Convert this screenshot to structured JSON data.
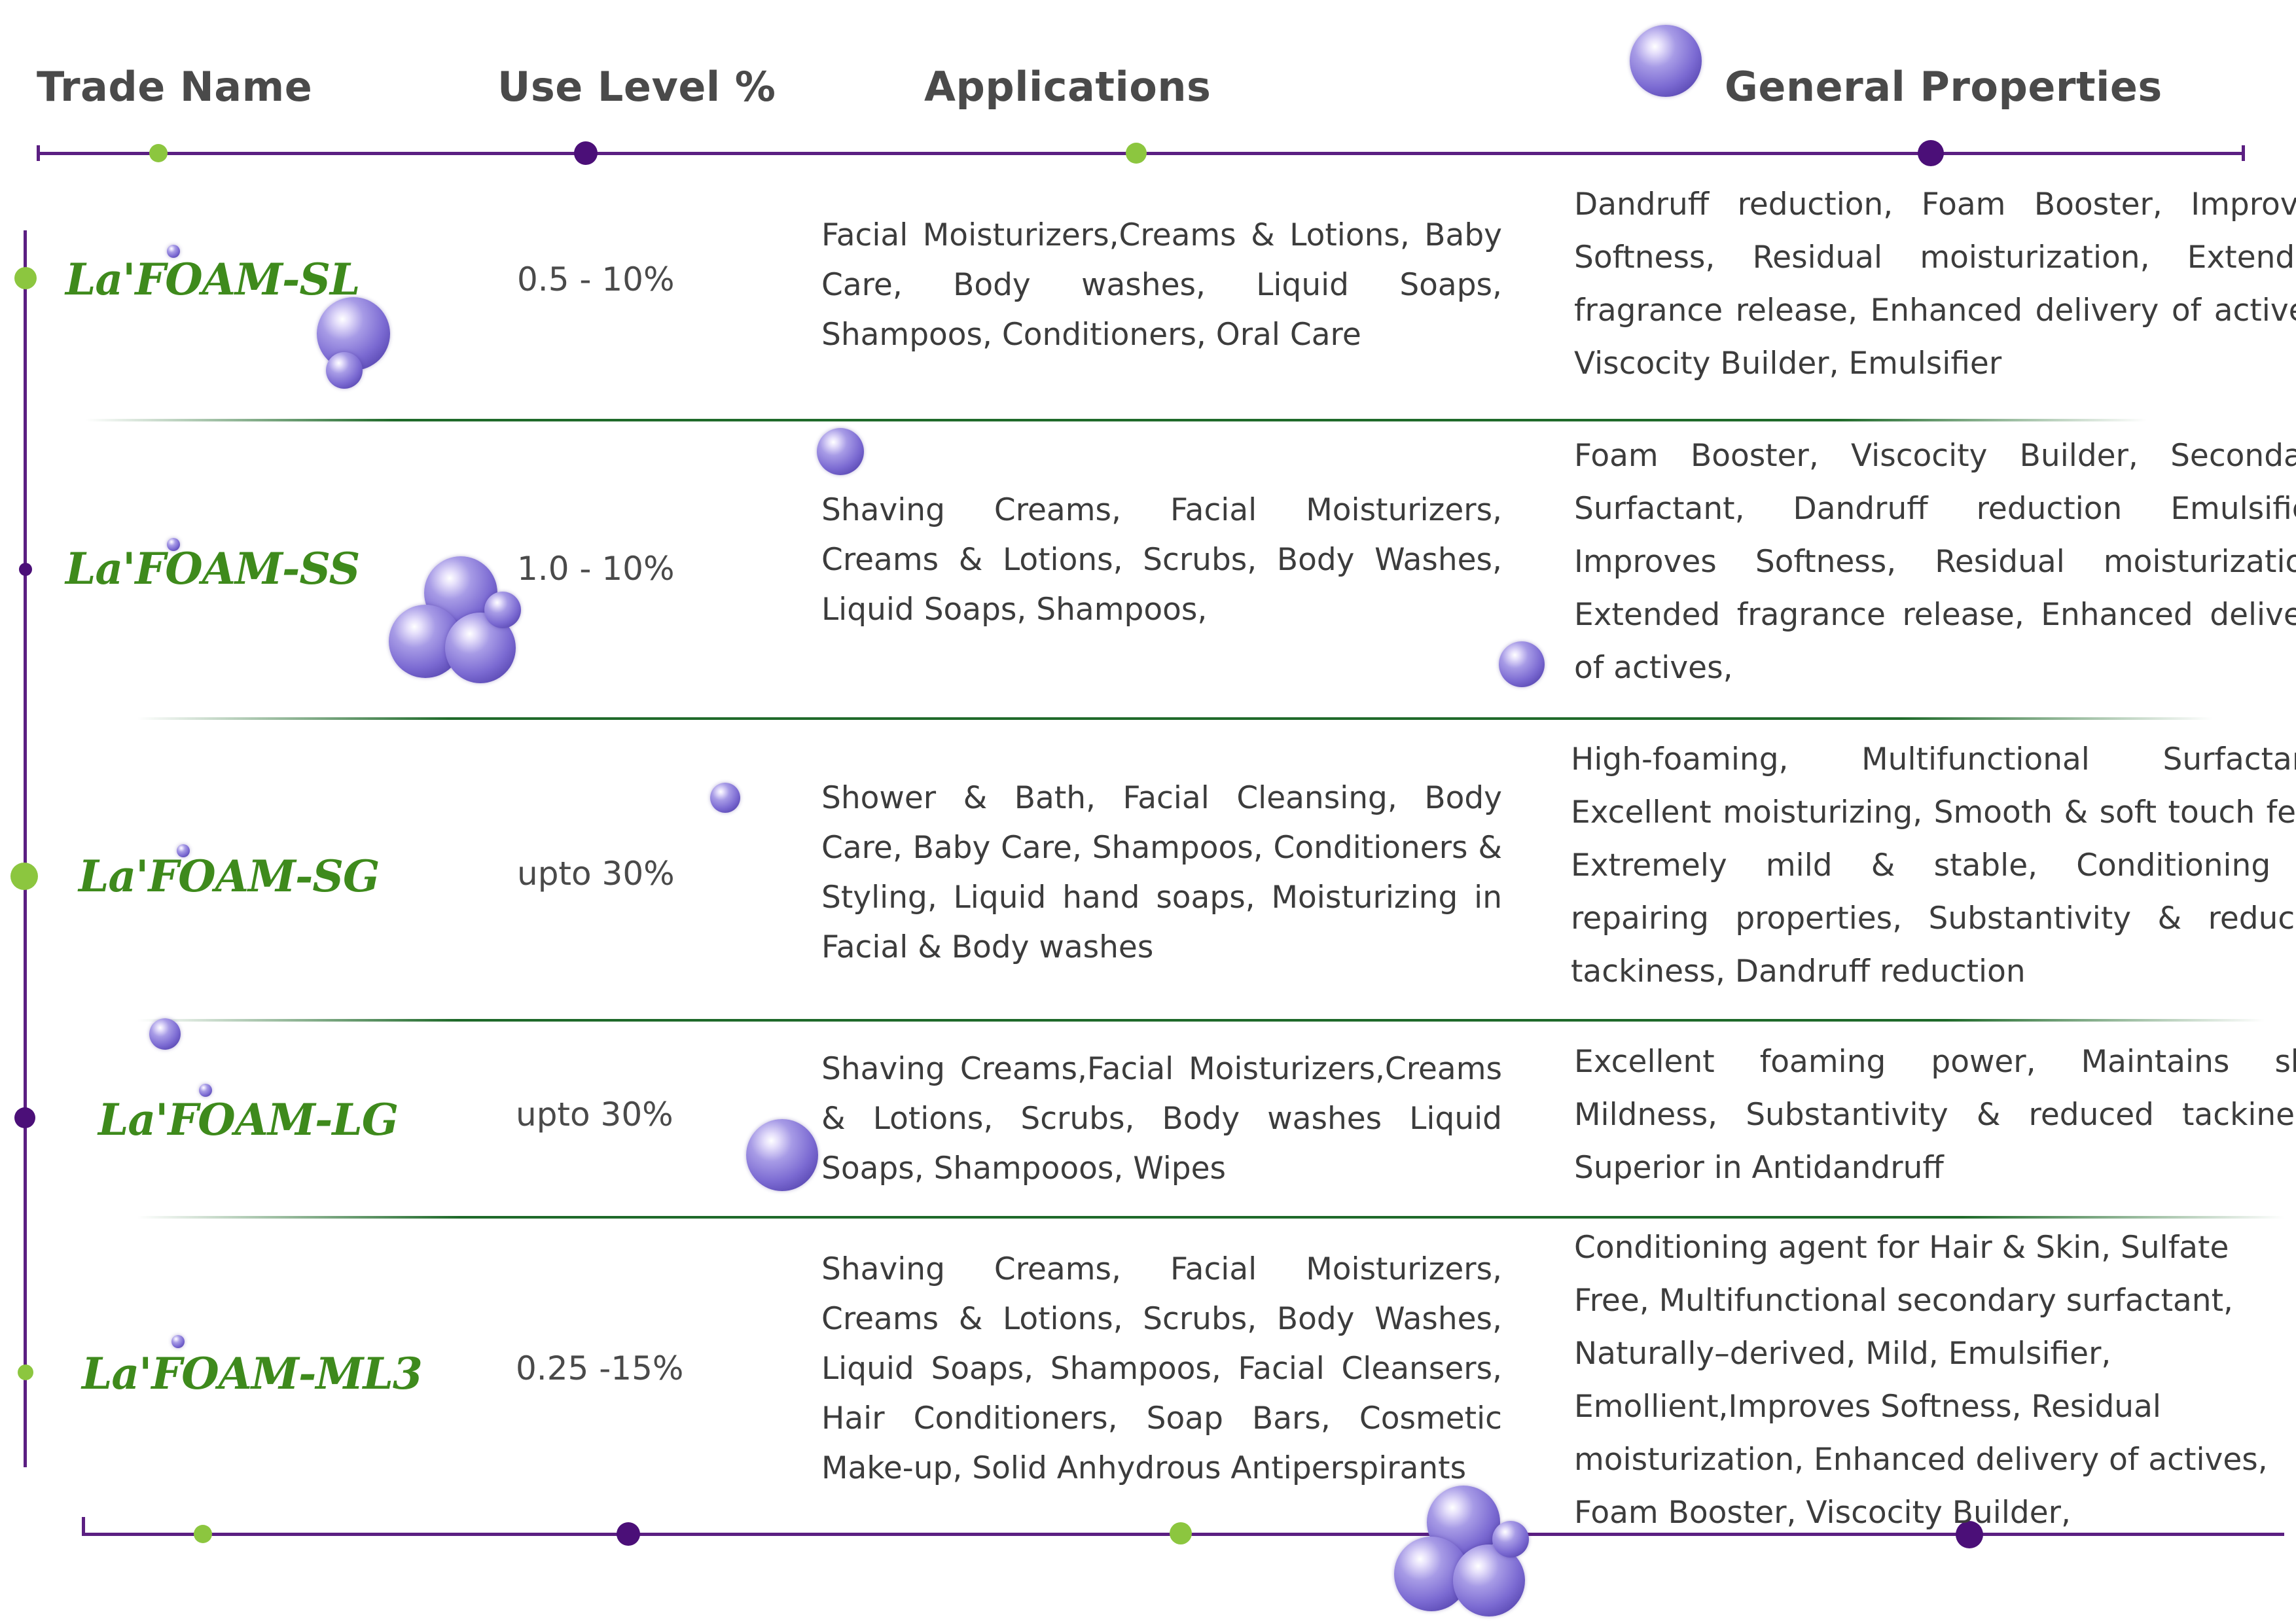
{
  "header": {
    "trade_name": "Trade Name",
    "use_level": "Use Level %",
    "applications": "Applications",
    "general_properties": "General Properties"
  },
  "colors": {
    "accent_purple": "#4b0f78",
    "accent_green": "#8cc63f",
    "trade_name_green": "#3e8a1c",
    "separator_green": "#1f6a2a",
    "bubble": "bubble-icon"
  },
  "rows": [
    {
      "trade_name": "La'FOAM-SL",
      "use_level": "0.5 - 10%",
      "applications": "Facial Moisturizers,Creams & Lotions, Baby Care, Body washes, Liquid Soaps, Shampoos, Conditioners, Oral Care",
      "properties": "Dandruff reduction, Foam Booster, Improves Softness, Residual moisturization, Extended fragrance release, Enhanced delivery of actives, Viscocity Builder, Emulsifier"
    },
    {
      "trade_name": "La'FOAM-SS",
      "use_level": "1.0 - 10%",
      "applications": "Shaving Creams, Facial Moisturizers, Creams & Lotions, Scrubs, Body Washes, Liquid Soaps, Shampoos,",
      "properties": "Foam Booster, Viscocity Builder, Secondary Surfactant, Dandruff reduction Emulsifier, Improves Softness, Residual moisturization, Extended fragrance release, Enhanced delivery of actives,"
    },
    {
      "trade_name": "La'FOAM-SG",
      "use_level": "upto 30%",
      "applications": "Shower & Bath, Facial Cleansing, Body Care, Baby Care, Shampoos, Conditioners & Styling, Liquid hand soaps, Moisturizing in Facial & Body washes",
      "properties": "High-foaming, Multifunctional Surfactant, Excellent moisturizing, Smooth & soft touch feel, Extremely mild & stable, Conditioning & repairing properties, Substantivity & reduced tackiness, Dandruff reduction"
    },
    {
      "trade_name": "La'FOAM-LG",
      "use_level": "upto 30%",
      "applications": "Shaving Creams,Facial Moisturizers,Creams & Lotions, Scrubs, Body washes Liquid Soaps, Shampooos, Wipes",
      "properties": "Excellent foaming power, Maintains skin Mildness, Substantivity & reduced tackiness, Superior in Antidandruff"
    },
    {
      "trade_name": "La'FOAM-ML3",
      "use_level": "0.25 -15%",
      "applications": "Shaving Creams, Facial Moisturizers, Creams & Lotions, Scrubs, Body Washes, Liquid Soaps, Shampoos, Facial Cleansers, Hair Conditioners, Soap Bars, Cosmetic Make-up, Solid Anhydrous Antiperspirants",
      "properties": "Conditioning agent for Hair & Skin, Sulfate Free, Multifunctional secondary surfactant, Naturally–derived, Mild, Emulsifier, Emollient,Improves Softness, Residual moisturization, Enhanced delivery of actives, Foam Booster, Viscocity Builder,"
    }
  ]
}
